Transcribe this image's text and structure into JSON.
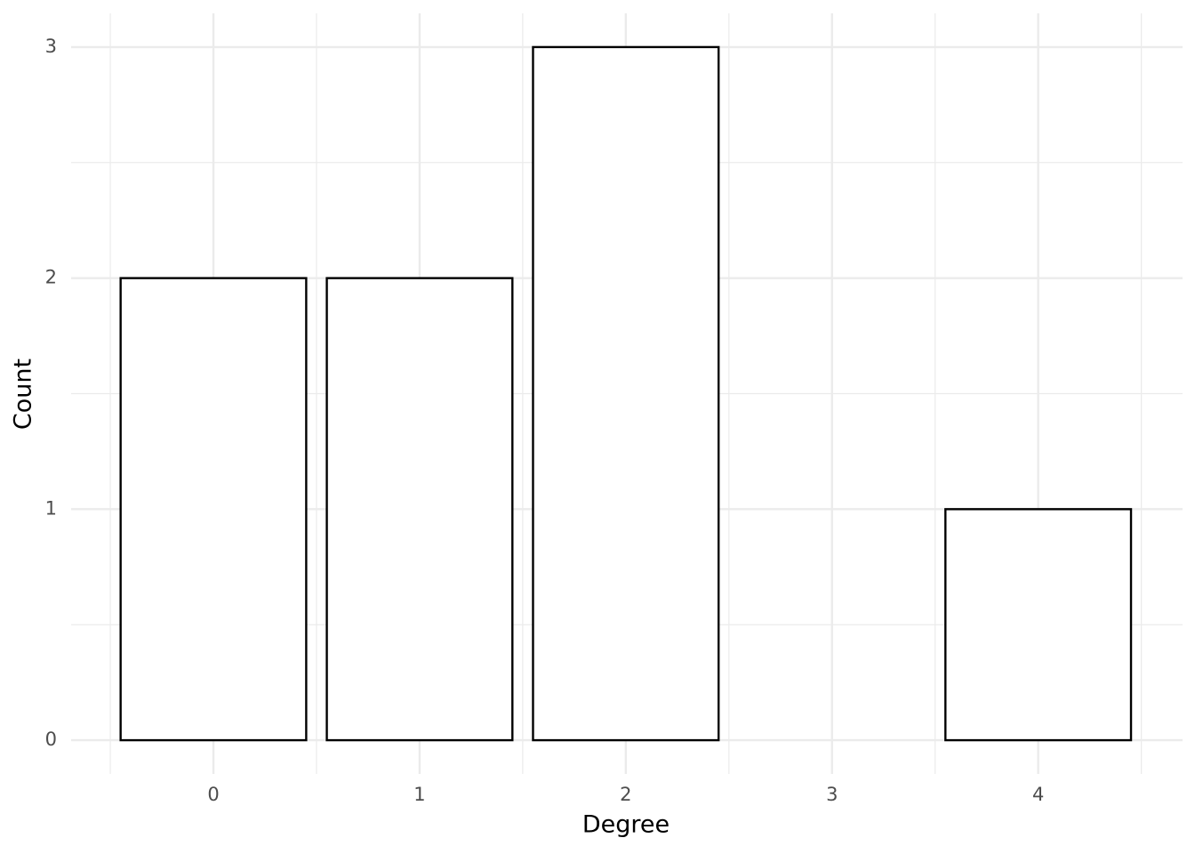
{
  "chart_data": {
    "type": "bar",
    "x": [
      0,
      1,
      2,
      4
    ],
    "values": [
      2,
      2,
      3,
      1
    ],
    "bar_width": 0.9,
    "color": "#ffffff",
    "edge_color": "#000000",
    "xlabel": "Degree",
    "ylabel": "Count",
    "xlim": [
      -0.69,
      4.7
    ],
    "ylim": [
      -0.146,
      3.146
    ],
    "xticks": [
      0,
      1,
      2,
      3,
      4
    ],
    "yticks": [
      0,
      1,
      2,
      3
    ],
    "grid": true
  }
}
